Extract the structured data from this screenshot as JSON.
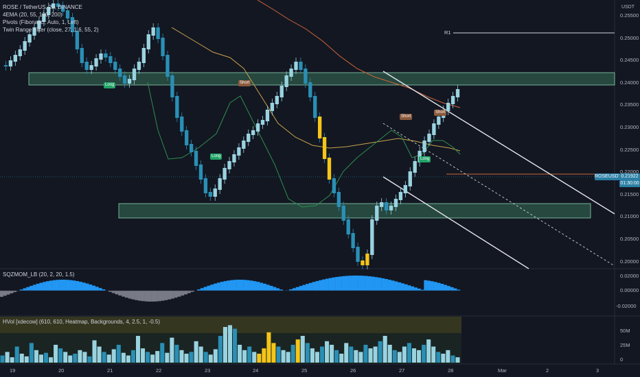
{
  "legend": {
    "main_title": "ROSE / TetherUS, 2h, BINANCE",
    "ind1": "4EMA (20, 55, 100, 200)",
    "ind2": "Pivots (Fibonacci, Auto, 1, Left)",
    "ind3": "Twin Range Filter (close, 27, 1.6, 55, 2)",
    "pane2": "SQZMOM_LB (20, 2, 20, 1.5)",
    "pane3": "HVol [xdecow] (610, 610, Heatmap, Backgrounds, 4, 2.5, 1, -0.5)"
  },
  "currency": "USDT",
  "price_axis": [
    "0.25500",
    "0.25000",
    "0.24500",
    "0.24000",
    "0.23500",
    "0.23000",
    "0.22500",
    "0.22000",
    "0.21500",
    "0.21000",
    "0.20500",
    "0.20000"
  ],
  "mom_axis": [
    "0.02000",
    "0.00000",
    "-0.02000"
  ],
  "vol_axis": [
    "50M",
    "25M",
    "0"
  ],
  "time_axis": [
    "19",
    "20",
    "21",
    "22",
    "23",
    "24",
    "25",
    "26",
    "27",
    "28",
    "Mar",
    "2",
    "3"
  ],
  "pivot_label": "R1",
  "price_tag": {
    "symbol": "ROSEUSDT",
    "price": "0.21922",
    "countdown": "01:30:00"
  },
  "signals": {
    "long": "Long",
    "short": "Short"
  },
  "colors": {
    "background": "#131722",
    "bull": "#9ad3e0",
    "bear": "#2a8fb5",
    "zone": "#2e5a4a",
    "ema20": "#2f8f4e",
    "ema55": "#c8a34a",
    "ema100": "#d0663a",
    "mom_pos": "#2196f3",
    "mom_neg": "#787b86",
    "vol_highlight": "#f5c518"
  }
}
